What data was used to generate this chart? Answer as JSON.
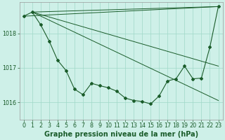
{
  "background_color": "#cef0e8",
  "plot_bg_color": "#cef0e8",
  "line_color": "#1a5c2a",
  "grid_color": "#a0d8c8",
  "title": "Graphe pression niveau de la mer (hPa)",
  "title_fontsize": 7.0,
  "tick_fontsize": 5.8,
  "ylim": [
    1015.5,
    1018.9
  ],
  "xlim": [
    -0.5,
    23.5
  ],
  "yticks": [
    1016,
    1017,
    1018
  ],
  "xticks": [
    0,
    1,
    2,
    3,
    4,
    5,
    6,
    7,
    8,
    9,
    10,
    11,
    12,
    13,
    14,
    15,
    16,
    17,
    18,
    19,
    20,
    21,
    22,
    23
  ],
  "series_main": {
    "x": [
      0,
      1,
      2,
      3,
      4,
      5,
      6,
      7,
      8,
      9,
      10,
      11,
      12,
      13,
      14,
      15,
      16,
      17,
      18,
      19,
      20,
      21,
      22,
      23
    ],
    "y": [
      1018.5,
      1018.62,
      1018.25,
      1017.78,
      1017.22,
      1016.92,
      1016.38,
      1016.22,
      1016.55,
      1016.48,
      1016.42,
      1016.32,
      1016.12,
      1016.05,
      1016.02,
      1015.95,
      1016.18,
      1016.62,
      1016.68,
      1017.05,
      1016.68,
      1016.7,
      1017.6,
      1018.78
    ]
  },
  "series_straight": [
    {
      "x": [
        0,
        23
      ],
      "y": [
        1018.5,
        1018.78
      ]
    },
    {
      "x": [
        1,
        23
      ],
      "y": [
        1018.62,
        1018.78
      ]
    },
    {
      "x": [
        1,
        23
      ],
      "y": [
        1018.62,
        1016.05
      ]
    },
    {
      "x": [
        1,
        23
      ],
      "y": [
        1018.62,
        1017.05
      ]
    }
  ]
}
